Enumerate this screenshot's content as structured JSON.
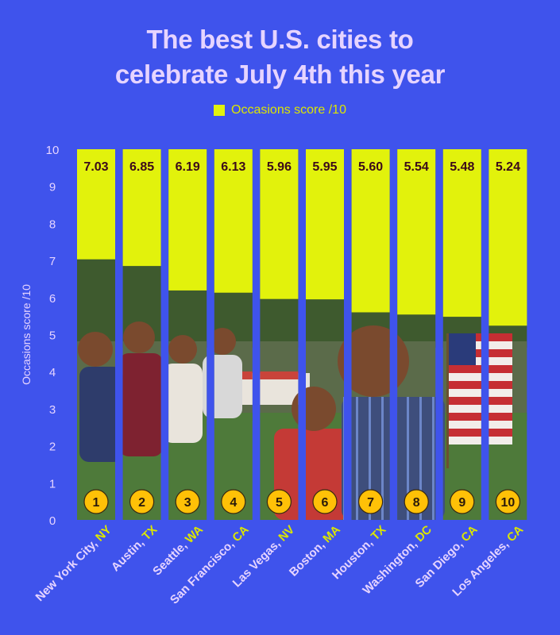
{
  "title_line1": "The best U.S. cities to",
  "title_line2": "celebrate July 4th this year",
  "legend_label": "Occasions score /10",
  "colors": {
    "background": "#3F53EC",
    "bar": "#E2F20C",
    "title": "#E6D4FF",
    "axis_text": "#E6D4FF",
    "state_text": "#DCE600",
    "badge": "#FFC107",
    "value_text": "#3B0A1A"
  },
  "chart_data": {
    "type": "bar",
    "title": "The best U.S. cities to celebrate July 4th this year",
    "ylabel": "Occasions score /10",
    "ylim": [
      0,
      10
    ],
    "yticks": [
      0,
      1,
      2,
      3,
      4,
      5,
      6,
      7,
      8,
      9,
      10
    ],
    "grid": false,
    "legend": "top-center",
    "categories": [
      {
        "city": "New York City,",
        "state": "NY",
        "rank": "1",
        "label": "7.03"
      },
      {
        "city": "Austin,",
        "state": "TX",
        "rank": "2",
        "label": "6.85"
      },
      {
        "city": "Seattle,",
        "state": "WA",
        "rank": "3",
        "label": "6.19"
      },
      {
        "city": "San Francisco,",
        "state": "CA",
        "rank": "4",
        "label": "6.13"
      },
      {
        "city": "Las Vegas,",
        "state": "NV",
        "rank": "5",
        "label": "5.96"
      },
      {
        "city": "Boston,",
        "state": "MA",
        "rank": "6",
        "label": "5.95"
      },
      {
        "city": "Houston,",
        "state": "TX",
        "rank": "7",
        "label": "5.60"
      },
      {
        "city": "Washington,",
        "state": "DC",
        "rank": "8",
        "label": "5.54"
      },
      {
        "city": "San Diego,",
        "state": "CA",
        "rank": "9",
        "label": "5.48"
      },
      {
        "city": "Los Angeles,",
        "state": "CA",
        "rank": "10",
        "label": "5.24"
      }
    ],
    "series": [
      {
        "name": "Occasions score /10",
        "values": [
          7.03,
          6.85,
          6.19,
          6.13,
          5.96,
          5.95,
          5.6,
          5.54,
          5.48,
          5.24
        ]
      }
    ]
  }
}
